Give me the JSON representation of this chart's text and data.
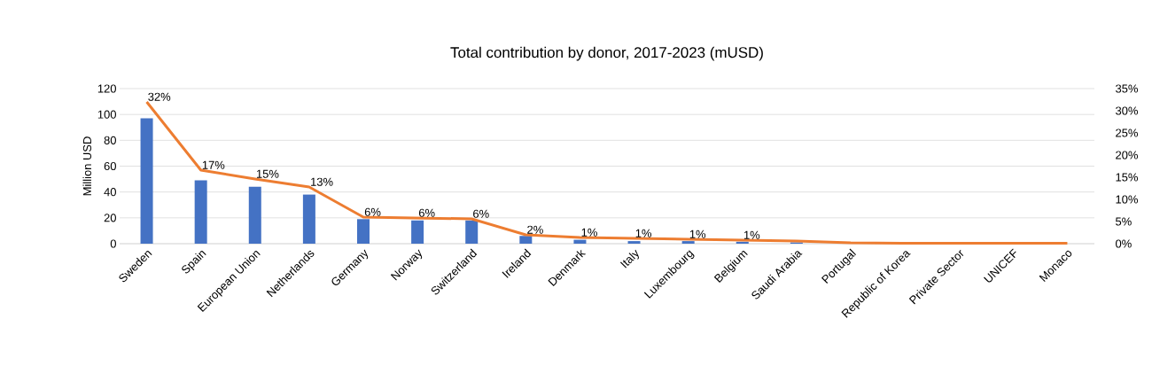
{
  "chart_data": {
    "type": "bar",
    "title": "Total contribution by donor, 2017-2023 (mUSD)",
    "ylabel": "Million USD",
    "categories": [
      "Sweden",
      "Spain",
      "European Union",
      "Netherlands",
      "Germany",
      "Norway",
      "Switzerland",
      "Ireland",
      "Denmark",
      "Italy",
      "Luxembourg",
      "Belgium",
      "Saudi Arabia",
      "Portugal",
      "Republic of Korea",
      "Private Sector",
      "UNICEF",
      "Monaco"
    ],
    "series": [
      {
        "color": "#4472c4",
        "values": [
          97,
          49,
          44,
          38,
          19,
          18,
          18,
          6,
          3,
          2,
          2,
          1.5,
          1,
          null,
          null,
          null,
          null,
          null
        ]
      },
      {
        "type": "line",
        "axis": "y2",
        "color": "#ed7d31",
        "values": [
          32,
          16.6,
          14.6,
          12.8,
          6,
          5.8,
          5.6,
          2,
          1.4,
          1.2,
          1,
          0.8,
          0.6,
          0.2,
          0.1,
          0.1,
          0.1,
          0.1
        ],
        "value_labels": [
          "32%",
          "17%",
          "15%",
          "13%",
          "6%",
          "6%",
          "6%",
          "2%",
          "1%",
          "1%",
          "1%",
          "1%",
          null,
          null,
          null,
          null,
          null,
          null
        ]
      }
    ],
    "ylim": [
      0,
      120
    ],
    "yticks": [
      0,
      20,
      40,
      60,
      80,
      100,
      120
    ],
    "y2lim": [
      0,
      35
    ],
    "y2ticks": [
      {
        "value": 0,
        "label": "0%"
      },
      {
        "value": 5,
        "label": "5%"
      },
      {
        "value": 10,
        "label": "10%"
      },
      {
        "value": 15,
        "label": "15%"
      },
      {
        "value": 20,
        "label": "20%"
      },
      {
        "value": 25,
        "label": "25%"
      },
      {
        "value": 30,
        "label": "30%"
      },
      {
        "value": 35,
        "label": "35%"
      }
    ],
    "grid": "y"
  }
}
